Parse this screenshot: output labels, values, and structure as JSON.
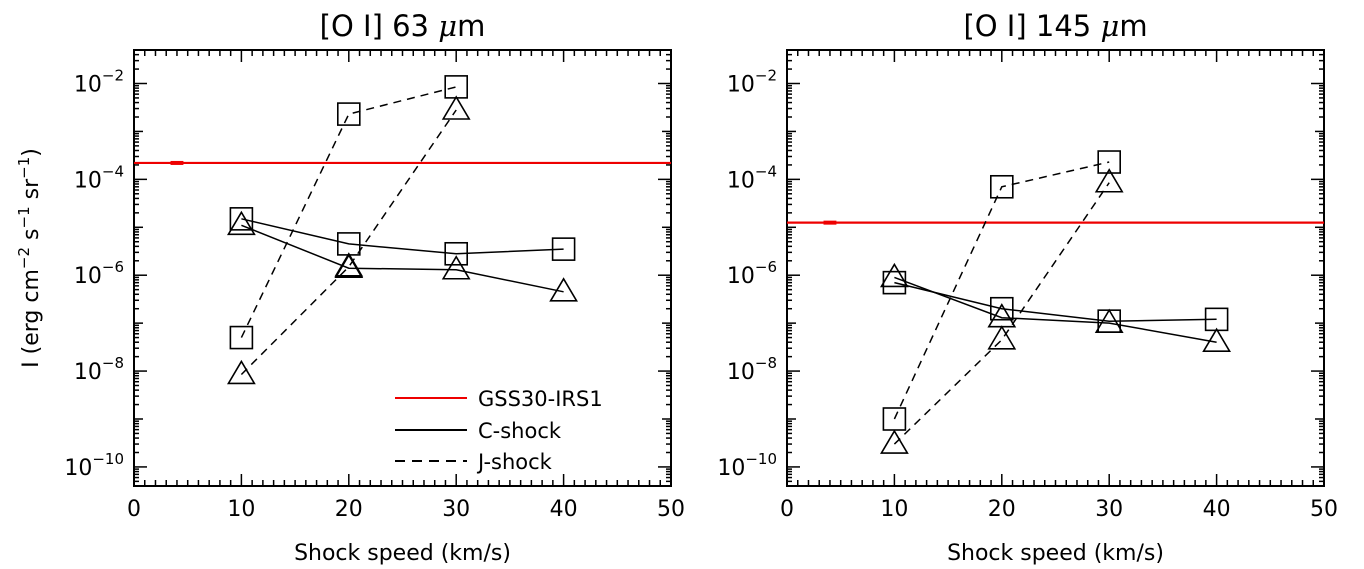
{
  "chart_data": [
    {
      "type": "scatter",
      "title_parts": [
        "[O I] 63 ",
        "μ",
        "m"
      ],
      "xlabel": "Shock speed (km/s)",
      "ylabel_parts": [
        "I (erg cm",
        "−2",
        " s",
        "−1",
        " sr",
        "−1",
        ")"
      ],
      "xlim": [
        0,
        50
      ],
      "ylim": [
        4e-11,
        0.05
      ],
      "log_y": true,
      "x_ticks": [
        0,
        10,
        20,
        30,
        40,
        50
      ],
      "x_tick_labels": [
        "0",
        "10",
        "20",
        "30",
        "40",
        "50"
      ],
      "y_ticks": [
        1e-10,
        1e-08,
        1e-06,
        0.0001,
        0.01
      ],
      "y_tick_base": [
        "10",
        "10",
        "10",
        "10",
        "10"
      ],
      "y_tick_exp": [
        "−10",
        "−8",
        "−6",
        "−4",
        "−2"
      ],
      "legend_position": "bottom-right",
      "observed": {
        "name": "GSS30-IRS1",
        "value": 0.00022,
        "error_x": 4,
        "color": "#ee0000"
      },
      "series": [
        {
          "name": "C-shock",
          "marker": "square",
          "line": "solid",
          "x": [
            10,
            20,
            30,
            40
          ],
          "y": [
            1.5e-05,
            4.5e-06,
            2.8e-06,
            3.5e-06
          ]
        },
        {
          "name": "C-shock",
          "marker": "triangle",
          "line": "solid",
          "x": [
            10,
            20,
            30,
            40
          ],
          "y": [
            1.1e-05,
            1.4e-06,
            1.3e-06,
            4.5e-07
          ]
        },
        {
          "name": "J-shock",
          "marker": "square",
          "line": "dashed",
          "x": [
            10,
            20,
            30
          ],
          "y": [
            5e-08,
            0.0023,
            0.0085
          ]
        },
        {
          "name": "J-shock",
          "marker": "triangle",
          "line": "dashed",
          "x": [
            10,
            20,
            30
          ],
          "y": [
            8.5e-09,
            1.5e-06,
            0.0028
          ]
        }
      ],
      "legend": [
        {
          "label": "GSS30-IRS1",
          "style": "solid",
          "color": "#ee0000"
        },
        {
          "label": "C-shock",
          "style": "solid",
          "color": "#000000"
        },
        {
          "label": "J-shock",
          "style": "dashed",
          "color": "#000000"
        }
      ]
    },
    {
      "type": "scatter",
      "title_parts": [
        "[O I] 145 ",
        "μ",
        "m"
      ],
      "xlabel": "Shock speed (km/s)",
      "ylabel_parts": [],
      "xlim": [
        0,
        50
      ],
      "ylim": [
        4e-11,
        0.05
      ],
      "log_y": true,
      "x_ticks": [
        0,
        10,
        20,
        30,
        40,
        50
      ],
      "x_tick_labels": [
        "0",
        "10",
        "20",
        "30",
        "40",
        "50"
      ],
      "y_ticks": [
        1e-10,
        1e-08,
        1e-06,
        0.0001,
        0.01
      ],
      "y_tick_base": [
        "10",
        "10",
        "10",
        "10",
        "10"
      ],
      "y_tick_exp": [
        "−10",
        "−8",
        "−6",
        "−4",
        "−2"
      ],
      "observed": {
        "name": "GSS30-IRS1",
        "value": 1.25e-05,
        "error_x": 4,
        "color": "#ee0000"
      },
      "series": [
        {
          "name": "C-shock",
          "marker": "square",
          "line": "solid",
          "x": [
            10,
            20,
            30,
            40
          ],
          "y": [
            7e-07,
            2e-07,
            1.1e-07,
            1.2e-07
          ]
        },
        {
          "name": "C-shock",
          "marker": "triangle",
          "line": "solid",
          "x": [
            10,
            20,
            30,
            40
          ],
          "y": [
            9e-07,
            1.3e-07,
            1e-07,
            4e-08
          ]
        },
        {
          "name": "J-shock",
          "marker": "square",
          "line": "dashed",
          "x": [
            10,
            20,
            30
          ],
          "y": [
            1e-09,
            7e-05,
            0.00023
          ]
        },
        {
          "name": "J-shock",
          "marker": "triangle",
          "line": "dashed",
          "x": [
            10,
            20,
            30
          ],
          "y": [
            3e-10,
            4.5e-08,
            8.5e-05
          ]
        }
      ],
      "legend": []
    }
  ]
}
